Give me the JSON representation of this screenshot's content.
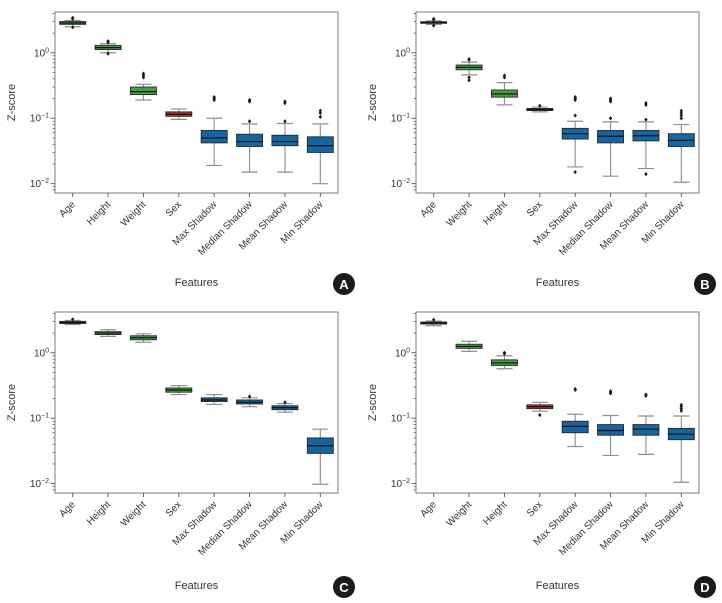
{
  "figure": {
    "background": "#ffffff",
    "colors": {
      "green": "#3fa33f",
      "red": "#b53226",
      "blue": "#1565a0",
      "box_edge": "#2a2a2a",
      "median": "#111111",
      "whisker": "#8f8f8f",
      "outlier": "#1a1a1a",
      "frame": "#7d7d7d",
      "tick": "#555555",
      "text": "#333333",
      "badge_bg": "#1b1b1b",
      "badge_fg": "#ffffff"
    }
  },
  "chart_data": [
    {
      "type": "box",
      "badge": "A",
      "title": "",
      "xlabel": "Features",
      "ylabel": "Z-score",
      "yscale": "log",
      "ylim": [
        0.0072,
        4.2
      ],
      "ytick_exponents": [
        0,
        -1,
        -2
      ],
      "grid": false,
      "legend": null,
      "categories": [
        "Age",
        "Height",
        "Weight",
        "Sex",
        "Max Shadow",
        "Median Shadow",
        "Mean Shadow",
        "Min Shadow"
      ],
      "boxes": [
        {
          "label": "Age",
          "color": "green",
          "whislo": 2.5,
          "q1": 2.72,
          "med": 2.85,
          "q3": 3.0,
          "whishi": 3.12,
          "outliers": [
            3.3,
            3.42,
            2.45
          ]
        },
        {
          "label": "Height",
          "color": "green",
          "whislo": 1.0,
          "q1": 1.12,
          "med": 1.2,
          "q3": 1.3,
          "whishi": 1.38,
          "outliers": [
            1.5,
            1.45,
            0.97
          ]
        },
        {
          "label": "Weight",
          "color": "green",
          "whislo": 0.19,
          "q1": 0.23,
          "med": 0.255,
          "q3": 0.3,
          "whishi": 0.33,
          "outliers": [
            0.42,
            0.45,
            0.48
          ]
        },
        {
          "label": "Sex",
          "color": "red",
          "whislo": 0.096,
          "q1": 0.107,
          "med": 0.115,
          "q3": 0.125,
          "whishi": 0.138,
          "outliers": []
        },
        {
          "label": "Max Shadow",
          "color": "blue",
          "whislo": 0.019,
          "q1": 0.042,
          "med": 0.05,
          "q3": 0.065,
          "whishi": 0.1,
          "outliers": [
            0.19,
            0.2,
            0.21
          ]
        },
        {
          "label": "Median Shadow",
          "color": "blue",
          "whislo": 0.015,
          "q1": 0.037,
          "med": 0.044,
          "q3": 0.057,
          "whishi": 0.082,
          "outliers": [
            0.18,
            0.19,
            0.09
          ]
        },
        {
          "label": "Mean Shadow",
          "color": "blue",
          "whislo": 0.015,
          "q1": 0.038,
          "med": 0.044,
          "q3": 0.055,
          "whishi": 0.083,
          "outliers": [
            0.17,
            0.18,
            0.09
          ]
        },
        {
          "label": "Min Shadow",
          "color": "blue",
          "whislo": 0.01,
          "q1": 0.03,
          "med": 0.038,
          "q3": 0.052,
          "whishi": 0.082,
          "outliers": [
            0.12,
            0.13,
            0.105
          ]
        }
      ]
    },
    {
      "type": "box",
      "badge": "B",
      "title": "",
      "xlabel": "Features",
      "ylabel": "Z-score",
      "yscale": "log",
      "ylim": [
        0.0072,
        4.2
      ],
      "ytick_exponents": [
        0,
        -1,
        -2
      ],
      "grid": false,
      "legend": null,
      "categories": [
        "Age",
        "Weight",
        "Height",
        "Sex",
        "Max Shadow",
        "Median Shadow",
        "Mean Shadow",
        "Min Shadow"
      ],
      "boxes": [
        {
          "label": "Age",
          "color": "green",
          "whislo": 2.72,
          "q1": 2.82,
          "med": 2.9,
          "q3": 2.98,
          "whishi": 3.08,
          "outliers": [
            3.3,
            3.2,
            2.6
          ]
        },
        {
          "label": "Weight",
          "color": "green",
          "whislo": 0.46,
          "q1": 0.55,
          "med": 0.6,
          "q3": 0.65,
          "whishi": 0.72,
          "outliers": [
            0.78,
            0.8,
            0.42,
            0.38
          ]
        },
        {
          "label": "Height",
          "color": "green",
          "whislo": 0.16,
          "q1": 0.21,
          "med": 0.235,
          "q3": 0.27,
          "whishi": 0.35,
          "outliers": [
            0.42,
            0.45
          ]
        },
        {
          "label": "Sex",
          "color": "red",
          "whislo": 0.125,
          "q1": 0.131,
          "med": 0.136,
          "q3": 0.141,
          "whishi": 0.148,
          "outliers": [
            0.155
          ]
        },
        {
          "label": "Max Shadow",
          "color": "blue",
          "whislo": 0.018,
          "q1": 0.048,
          "med": 0.058,
          "q3": 0.07,
          "whishi": 0.09,
          "outliers": [
            0.19,
            0.2,
            0.21,
            0.11,
            0.015
          ]
        },
        {
          "label": "Median Shadow",
          "color": "blue",
          "whislo": 0.013,
          "q1": 0.042,
          "med": 0.053,
          "q3": 0.065,
          "whishi": 0.088,
          "outliers": [
            0.18,
            0.19,
            0.2,
            0.1
          ]
        },
        {
          "label": "Mean Shadow",
          "color": "blue",
          "whislo": 0.017,
          "q1": 0.045,
          "med": 0.054,
          "q3": 0.065,
          "whishi": 0.088,
          "outliers": [
            0.16,
            0.17,
            0.095,
            0.014
          ]
        },
        {
          "label": "Min Shadow",
          "color": "blue",
          "whislo": 0.0105,
          "q1": 0.037,
          "med": 0.046,
          "q3": 0.058,
          "whishi": 0.08,
          "outliers": [
            0.11,
            0.12,
            0.13,
            0.1
          ]
        }
      ]
    },
    {
      "type": "box",
      "badge": "C",
      "title": "",
      "xlabel": "Features",
      "ylabel": "Z-score",
      "yscale": "log",
      "ylim": [
        0.0072,
        4.2
      ],
      "ytick_exponents": [
        0,
        -1,
        -2
      ],
      "grid": false,
      "legend": null,
      "categories": [
        "Age",
        "Height",
        "Weight",
        "Sex",
        "Max Shadow",
        "Median Shadow",
        "Mean Shadow",
        "Min Shadow"
      ],
      "boxes": [
        {
          "label": "Age",
          "color": "green",
          "whislo": 2.7,
          "q1": 2.8,
          "med": 2.9,
          "q3": 3.02,
          "whishi": 3.12,
          "outliers": [
            3.25
          ]
        },
        {
          "label": "Height",
          "color": "green",
          "whislo": 1.78,
          "q1": 1.9,
          "med": 2.0,
          "q3": 2.1,
          "whishi": 2.25,
          "outliers": []
        },
        {
          "label": "Weight",
          "color": "green",
          "whislo": 1.45,
          "q1": 1.58,
          "med": 1.7,
          "q3": 1.82,
          "whishi": 1.95,
          "outliers": []
        },
        {
          "label": "Sex",
          "color": "green",
          "whislo": 0.23,
          "q1": 0.25,
          "med": 0.27,
          "q3": 0.29,
          "whishi": 0.315,
          "outliers": []
        },
        {
          "label": "Max Shadow",
          "color": "blue",
          "whislo": 0.163,
          "q1": 0.18,
          "med": 0.19,
          "q3": 0.205,
          "whishi": 0.23,
          "outliers": []
        },
        {
          "label": "Median Shadow",
          "color": "blue",
          "whislo": 0.15,
          "q1": 0.165,
          "med": 0.175,
          "q3": 0.19,
          "whishi": 0.205,
          "outliers": [
            0.215
          ]
        },
        {
          "label": "Mean Shadow",
          "color": "blue",
          "whislo": 0.124,
          "q1": 0.135,
          "med": 0.145,
          "q3": 0.155,
          "whishi": 0.167,
          "outliers": [
            0.175
          ]
        },
        {
          "label": "Min Shadow",
          "color": "blue",
          "whislo": 0.0098,
          "q1": 0.029,
          "med": 0.038,
          "q3": 0.05,
          "whishi": 0.068,
          "outliers": []
        }
      ]
    },
    {
      "type": "box",
      "badge": "D",
      "title": "",
      "xlabel": "Features",
      "ylabel": "Z-score",
      "yscale": "log",
      "ylim": [
        0.0072,
        4.2
      ],
      "ytick_exponents": [
        0,
        -1,
        -2
      ],
      "grid": false,
      "legend": null,
      "categories": [
        "Age",
        "Weight",
        "Height",
        "Sex",
        "Max Shadow",
        "Median Shadow",
        "Mean Shadow",
        "Min Shadow"
      ],
      "boxes": [
        {
          "label": "Age",
          "color": "green",
          "whislo": 2.6,
          "q1": 2.75,
          "med": 2.85,
          "q3": 2.95,
          "whishi": 3.05,
          "outliers": [
            3.2
          ]
        },
        {
          "label": "Weight",
          "color": "green",
          "whislo": 1.05,
          "q1": 1.17,
          "med": 1.25,
          "q3": 1.35,
          "whishi": 1.5,
          "outliers": []
        },
        {
          "label": "Height",
          "color": "green",
          "whislo": 0.57,
          "q1": 0.64,
          "med": 0.7,
          "q3": 0.78,
          "whishi": 0.9,
          "outliers": [
            1.0,
            0.97
          ]
        },
        {
          "label": "Sex",
          "color": "red",
          "whislo": 0.128,
          "q1": 0.14,
          "med": 0.15,
          "q3": 0.16,
          "whishi": 0.175,
          "outliers": [
            0.112
          ]
        },
        {
          "label": "Max Shadow",
          "color": "blue",
          "whislo": 0.037,
          "q1": 0.06,
          "med": 0.075,
          "q3": 0.09,
          "whishi": 0.115,
          "outliers": [
            0.27,
            0.28
          ]
        },
        {
          "label": "Median Shadow",
          "color": "blue",
          "whislo": 0.027,
          "q1": 0.055,
          "med": 0.065,
          "q3": 0.08,
          "whishi": 0.11,
          "outliers": [
            0.24,
            0.25,
            0.26
          ]
        },
        {
          "label": "Mean Shadow",
          "color": "blue",
          "whislo": 0.028,
          "q1": 0.055,
          "med": 0.068,
          "q3": 0.08,
          "whishi": 0.108,
          "outliers": [
            0.22,
            0.23
          ]
        },
        {
          "label": "Min Shadow",
          "color": "blue",
          "whislo": 0.0105,
          "q1": 0.047,
          "med": 0.057,
          "q3": 0.07,
          "whishi": 0.108,
          "outliers": [
            0.13,
            0.14,
            0.15,
            0.16
          ]
        }
      ]
    }
  ]
}
